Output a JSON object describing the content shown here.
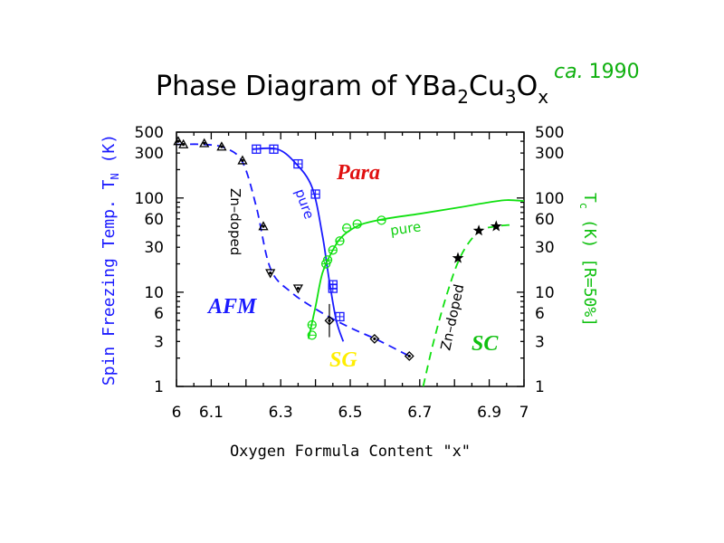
{
  "chart_data": {
    "type": "scatter",
    "title": {
      "prefix": "Phase Diagram of YBa",
      "s1": "2",
      "mid1": "Cu",
      "s2": "3",
      "mid2": "O",
      "s3": "x"
    },
    "annotation_date": {
      "italic": "ca.",
      "year": "1990"
    },
    "xlabel": "Oxygen Formula Content \"x\"",
    "ylabel_left": {
      "main": "Spin Freezing Temp. T",
      "sub": "N",
      "unit": " (K)"
    },
    "ylabel_right": {
      "main": "T",
      "sub": "c",
      "unit": " (K) [R=50%]"
    },
    "xlim": [
      6,
      7
    ],
    "ylim": [
      1,
      500
    ],
    "yscale": "log",
    "x_ticks": [
      "6",
      "6.1",
      "6.3",
      "6.5",
      "6.7",
      "6.9",
      "7"
    ],
    "y_ticks": [
      "1",
      "3",
      "6",
      "10",
      "30",
      "60",
      "100",
      "300",
      "500"
    ],
    "regions": [
      {
        "label": "Para",
        "color": "#e01010"
      },
      {
        "label": "AFM",
        "color": "#1a1aff"
      },
      {
        "label": "SG",
        "color": "#ffff00"
      },
      {
        "label": "SC",
        "color": "#10c010"
      }
    ],
    "curve_labels": {
      "afm_pure": "pure",
      "afm_zn": "Zn–doped",
      "sc_pure": "pure",
      "sc_zn": "Zn–doped"
    },
    "colors": {
      "afm": "#1a1aff",
      "sc": "#10e010",
      "zn_points": "#000000"
    },
    "series": [
      {
        "id": "afm_pure_points",
        "marker": "square",
        "points": [
          [
            6.23,
            330
          ],
          [
            6.28,
            330
          ],
          [
            6.35,
            230
          ],
          [
            6.4,
            110
          ],
          [
            6.45,
            12
          ],
          [
            6.45,
            11
          ],
          [
            6.47,
            5.5
          ]
        ]
      },
      {
        "id": "afm_pure_curve",
        "style": "solid",
        "points": [
          [
            6.22,
            330
          ],
          [
            6.29,
            330
          ],
          [
            6.34,
            240
          ],
          [
            6.39,
            130
          ],
          [
            6.42,
            40
          ],
          [
            6.44,
            13
          ],
          [
            6.46,
            5
          ],
          [
            6.48,
            3
          ]
        ]
      },
      {
        "id": "afm_zn_points",
        "marker": "triangles",
        "points": [
          [
            6.005,
            400
          ],
          [
            6.02,
            370
          ],
          [
            6.08,
            380
          ],
          [
            6.13,
            350
          ],
          [
            6.19,
            250
          ],
          [
            6.25,
            50
          ],
          [
            6.27,
            16
          ],
          [
            6.35,
            11
          ],
          [
            6.44,
            5
          ],
          [
            6.57,
            3.2
          ],
          [
            6.67,
            2.1
          ]
        ]
      },
      {
        "id": "afm_zn_curve",
        "style": "dashed",
        "points": [
          [
            6.0,
            370
          ],
          [
            6.08,
            370
          ],
          [
            6.14,
            340
          ],
          [
            6.19,
            240
          ],
          [
            6.23,
            80
          ],
          [
            6.27,
            18
          ],
          [
            6.33,
            10
          ],
          [
            6.42,
            6
          ],
          [
            6.5,
            4.2
          ],
          [
            6.58,
            3.1
          ],
          [
            6.67,
            2.1
          ]
        ]
      },
      {
        "id": "sc_pure_points",
        "marker": "circle",
        "points": [
          [
            6.39,
            3.5
          ],
          [
            6.39,
            4.5
          ],
          [
            6.43,
            20
          ],
          [
            6.435,
            22
          ],
          [
            6.45,
            28
          ],
          [
            6.47,
            35
          ],
          [
            6.49,
            48
          ],
          [
            6.52,
            53
          ],
          [
            6.59,
            58
          ]
        ]
      },
      {
        "id": "sc_pure_curve",
        "style": "solid",
        "points": [
          [
            6.38,
            3.2
          ],
          [
            6.4,
            7
          ],
          [
            6.42,
            16
          ],
          [
            6.45,
            28
          ],
          [
            6.48,
            40
          ],
          [
            6.53,
            52
          ],
          [
            6.6,
            60
          ],
          [
            6.7,
            68
          ],
          [
            6.8,
            78
          ],
          [
            6.9,
            90
          ],
          [
            6.95,
            95
          ],
          [
            7.0,
            93
          ]
        ]
      },
      {
        "id": "sc_zn_points",
        "marker": "star",
        "points": [
          [
            6.81,
            23
          ],
          [
            6.87,
            45
          ],
          [
            6.92,
            50
          ]
        ]
      },
      {
        "id": "sc_zn_curve",
        "style": "dashed",
        "points": [
          [
            6.71,
            1
          ],
          [
            6.74,
            3
          ],
          [
            6.78,
            10
          ],
          [
            6.82,
            25
          ],
          [
            6.87,
            44
          ],
          [
            6.92,
            50
          ],
          [
            6.97,
            52
          ]
        ]
      }
    ]
  }
}
